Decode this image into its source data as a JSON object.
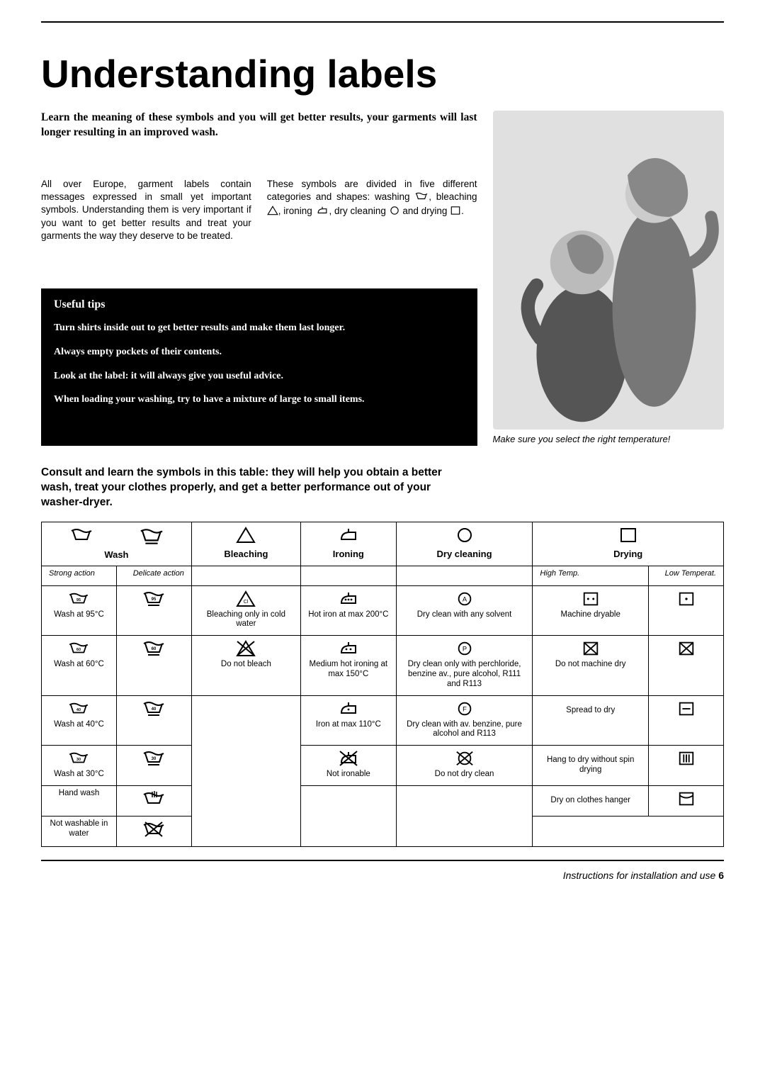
{
  "title": "Understanding labels",
  "intro": "Learn the meaning of these symbols and you will get better results, your garments will last longer resulting in an improved wash.",
  "col1_text": "All over Europe, garment labels contain messages expressed in small yet important symbols. Understanding them is very important if you want to get better results and treat your garments the way they deserve to be treated.",
  "col2_text_a": "These symbols are divided in five different categories and shapes: washing ",
  "col2_text_b": ", bleaching ",
  "col2_text_c": ", ironing ",
  "col2_text_d": ", dry cleaning ",
  "col2_text_e": " and drying ",
  "col2_text_f": ".",
  "illustration_caption": "Make sure you select  the right temperature!",
  "tips": {
    "title": "Useful tips",
    "items": [
      "Turn shirts inside out to get better results and make them last longer.",
      "Always empty pockets of their contents.",
      "Look at the label: it will always give you useful advice.",
      "When loading your washing, try to have a mixture of large to small items."
    ]
  },
  "table_intro": "Consult and learn the symbols in this table: they will help you obtain a better wash, treat your clothes properly, and get a better performance out of your washer-dryer.",
  "columns": {
    "wash": "Wash",
    "bleaching": "Bleaching",
    "ironing": "Ironing",
    "drycleaning": "Dry cleaning",
    "drying": "Drying"
  },
  "subheads": {
    "strong": "Strong action",
    "delicate": "Delicate action",
    "high": "High Temp.",
    "low": "Low Temperat."
  },
  "rows": [
    {
      "wash_temp": "95",
      "wash_text": "Wash at 95°C",
      "bleach_text": "Bleaching only in cold water",
      "bleach_icon": "cl",
      "iron_text": "Hot iron at max 200°C",
      "iron_dots": 3,
      "dryc_text": "Dry clean with any solvent",
      "dryc_letter": "A",
      "drya_text": "Machine dryable",
      "drya_icon": "sq-2dots",
      "dryb_icon": "sq-1dot"
    },
    {
      "wash_temp": "60",
      "wash_text": "Wash at 60°C",
      "bleach_text": "Do not bleach",
      "bleach_icon": "no",
      "iron_text": "Medium hot ironing at max 150°C",
      "iron_dots": 2,
      "dryc_text": "Dry clean only with perchloride, benzine av., pure alcohol, R111 and R113",
      "dryc_letter": "P",
      "drya_text": "Do not machine dry",
      "drya_icon": "sq-x",
      "dryb_icon": "sq-x"
    },
    {
      "wash_temp": "40",
      "wash_text": "Wash at 40°C",
      "bleach_text": "",
      "bleach_icon": "",
      "iron_text": "Iron at max 110°C",
      "iron_dots": 1,
      "dryc_text": "Dry clean with av. benzine, pure alcohol and R113",
      "dryc_letter": "F",
      "drya_text": "Spread to dry",
      "drya_icon": "",
      "dryb_icon": "sq-dash"
    },
    {
      "wash_temp": "30",
      "wash_text": "Wash at 30°C",
      "bleach_text": "",
      "bleach_icon": "",
      "iron_text": "Not ironable",
      "iron_dots": 0,
      "dryc_text": "Do not dry clean",
      "dryc_letter": "X",
      "drya_text": "Hang to dry without spin drying",
      "drya_icon": "",
      "dryb_icon": "sq-3bars"
    },
    {
      "wash_temp": "hand",
      "wash_text": "Hand wash",
      "drya_text": "Dry on clothes hanger",
      "dryb_icon": "sq-curve"
    },
    {
      "wash_temp": "nowash",
      "wash_text": "Not washable in water"
    }
  ],
  "footer_text": "Instructions for installation and use",
  "page_number": "6",
  "colors": {
    "text": "#000000",
    "bg": "#ffffff",
    "tipbox_bg": "#000000",
    "tipbox_fg": "#ffffff",
    "illus_bg": "#e0e0e0"
  }
}
